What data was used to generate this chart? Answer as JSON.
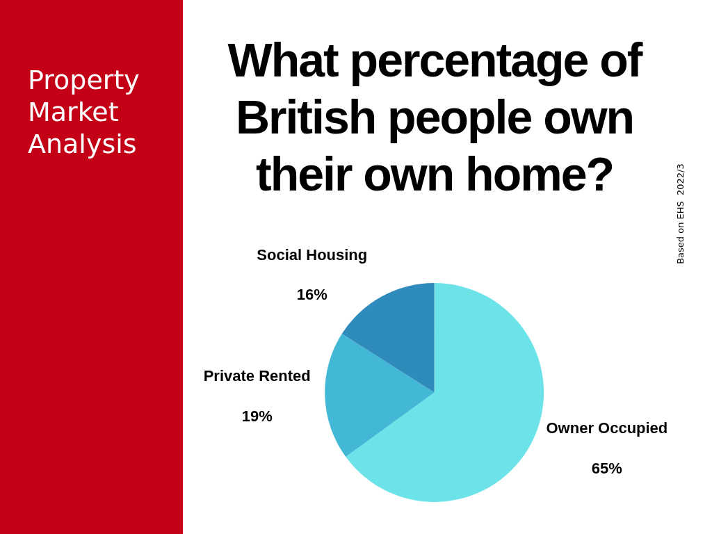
{
  "chart_data": {
    "type": "pie",
    "title": "What percentage of British people own their own home?",
    "subtitle": "Property Market Analysis",
    "categories": [
      "Owner Occupied",
      "Private Rented",
      "Social Housing"
    ],
    "values": [
      65,
      19,
      16
    ],
    "value_labels": [
      "65%",
      "19%",
      "16%"
    ],
    "colors": [
      "#6ce3e8",
      "#42b8d6",
      "#2e8bbb"
    ],
    "legend": false,
    "annotations": [
      "Based on EHS  2022/3"
    ]
  }
}
